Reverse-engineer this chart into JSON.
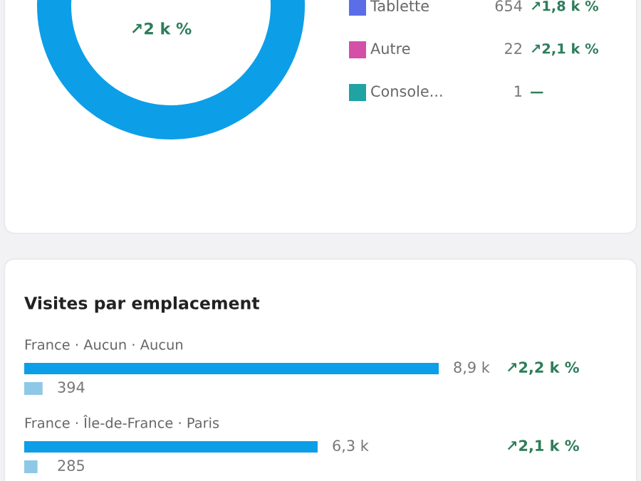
{
  "chart_data": [
    {
      "type": "other",
      "categories": [
        "Tablette",
        "Autre",
        "Console..."
      ],
      "values": [
        654,
        22,
        1
      ],
      "data_labels": true,
      "colors": [
        "#5b6ee8",
        "#d44fa8",
        "#1fa3a3"
      ],
      "annotations": [
        "↗2 k %",
        "↗1,8 k %",
        "↗2,1 k %",
        "—"
      ]
    },
    {
      "type": "bar",
      "orientation": "horizontal",
      "title": "Visites par emplacement",
      "categories": [
        "France · Aucun · Aucun",
        "France · Île-de-France · Paris"
      ],
      "series": [
        {
          "color": "#0d9ee8",
          "values": [
            8900,
            6300
          ],
          "value_labels": [
            "8,9 k",
            "6,3 k"
          ]
        },
        {
          "color": "#8ec8e6",
          "values": [
            394,
            285
          ],
          "value_labels": [
            "394",
            "285"
          ]
        }
      ],
      "annotations": [
        "↗2,2 k %",
        "↗2,1 k %"
      ]
    }
  ]
}
